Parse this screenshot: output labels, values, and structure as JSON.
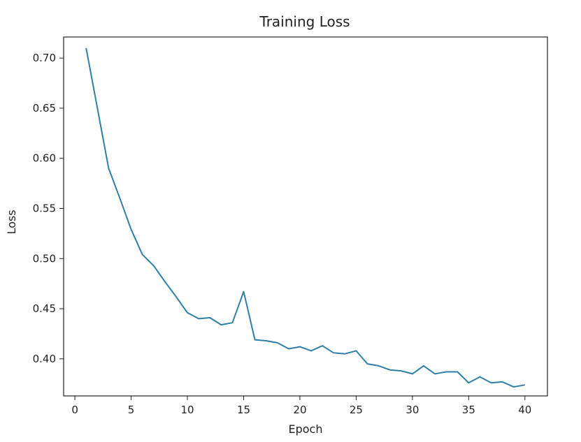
{
  "chart_data": {
    "type": "line",
    "title": "Training Loss",
    "xlabel": "Epoch",
    "ylabel": "Loss",
    "xlim": [
      -1.0,
      42.0
    ],
    "ylim": [
      0.363,
      0.721
    ],
    "xticks": [
      0,
      5,
      10,
      15,
      20,
      25,
      30,
      35,
      40
    ],
    "xtick_labels": [
      "0",
      "5",
      "10",
      "15",
      "20",
      "25",
      "30",
      "35",
      "40"
    ],
    "yticks": [
      0.4,
      0.45,
      0.5,
      0.55,
      0.6,
      0.65,
      0.7
    ],
    "ytick_labels": [
      "0.40",
      "0.45",
      "0.50",
      "0.55",
      "0.60",
      "0.65",
      "0.70"
    ],
    "grid": false,
    "color": "#2f7fa8",
    "series": [
      {
        "x": [
          1,
          2,
          3,
          4,
          5,
          6,
          7,
          8,
          9,
          10,
          11,
          12,
          13,
          14,
          15,
          16,
          17,
          18,
          19,
          20,
          21,
          22,
          23,
          24,
          25,
          26,
          27,
          28,
          29,
          30,
          31,
          32,
          33,
          34,
          35,
          36,
          37,
          38,
          39,
          40
        ],
        "values": [
          0.71,
          0.65,
          0.59,
          0.56,
          0.529,
          0.504,
          0.493,
          0.477,
          0.462,
          0.446,
          0.44,
          0.441,
          0.434,
          0.436,
          0.467,
          0.419,
          0.418,
          0.416,
          0.41,
          0.412,
          0.408,
          0.413,
          0.406,
          0.405,
          0.408,
          0.395,
          0.393,
          0.389,
          0.388,
          0.385,
          0.393,
          0.385,
          0.387,
          0.387,
          0.376,
          0.382,
          0.376,
          0.377,
          0.372,
          0.374
        ]
      }
    ]
  }
}
